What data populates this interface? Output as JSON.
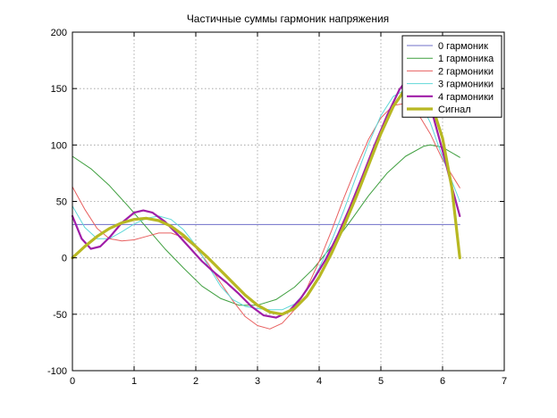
{
  "chart_data": {
    "type": "line",
    "title": "Частичные суммы гармоник напряжения",
    "xlabel": "",
    "ylabel": "",
    "xlim": [
      0,
      7
    ],
    "ylim": [
      -100,
      200
    ],
    "xticks": [
      "0",
      "1",
      "2",
      "3",
      "4",
      "5",
      "6",
      "7"
    ],
    "yticks": [
      "-100",
      "-50",
      "0",
      "50",
      "100",
      "150",
      "200"
    ],
    "grid": true,
    "legend_position": "top-right",
    "series": [
      {
        "name": "0 гармоник",
        "color": "#6f6fc8",
        "width": "thin",
        "x": [
          0,
          6.28
        ],
        "y": [
          29.5,
          29.5
        ]
      },
      {
        "name": "1 гармоника",
        "color": "#3f9f3f",
        "width": "thin",
        "x": [
          0,
          0.3,
          0.6,
          0.9,
          1.2,
          1.5,
          1.8,
          2.1,
          2.4,
          2.7,
          3.0,
          3.3,
          3.6,
          3.9,
          4.2,
          4.5,
          4.8,
          5.1,
          5.4,
          5.7,
          5.8,
          6.0,
          6.28
        ],
        "y": [
          90,
          79,
          64,
          46,
          27,
          8,
          -9,
          -25,
          -36,
          -42,
          -42,
          -37,
          -26,
          -10,
          10,
          32,
          55,
          75,
          90,
          99,
          100,
          98,
          89
        ]
      },
      {
        "name": "2 гармоники",
        "color": "#e86060",
        "width": "thin",
        "x": [
          0,
          0.2,
          0.4,
          0.6,
          0.8,
          1.0,
          1.2,
          1.4,
          1.6,
          1.8,
          2.0,
          2.2,
          2.4,
          2.6,
          2.8,
          3.0,
          3.2,
          3.4,
          3.6,
          3.8,
          4.0,
          4.2,
          4.4,
          4.6,
          4.8,
          5.0,
          5.2,
          5.4,
          5.6,
          5.8,
          6.0,
          6.28
        ],
        "y": [
          63,
          43,
          26,
          17,
          15,
          16,
          19,
          22,
          22,
          18,
          9,
          -5,
          -22,
          -38,
          -52,
          -60,
          -63,
          -58,
          -46,
          -27,
          -3,
          24,
          53,
          80,
          105,
          124,
          135,
          137,
          128,
          110,
          87,
          62
        ]
      },
      {
        "name": "3 гармоники",
        "color": "#5fd8d8",
        "width": "thin",
        "x": [
          0,
          0.2,
          0.4,
          0.6,
          0.8,
          1.0,
          1.2,
          1.4,
          1.6,
          1.8,
          2.0,
          2.2,
          2.4,
          2.6,
          2.8,
          3.0,
          3.2,
          3.4,
          3.6,
          3.8,
          4.0,
          4.2,
          4.4,
          4.6,
          4.8,
          5.0,
          5.2,
          5.4,
          5.6,
          5.8,
          6.0,
          6.28
        ],
        "y": [
          46,
          27,
          17,
          17,
          23,
          30,
          35,
          37,
          34,
          25,
          11,
          -7,
          -25,
          -37,
          -43,
          -45,
          -46,
          -46,
          -41,
          -29,
          -9,
          15,
          42,
          72,
          101,
          126,
          143,
          149,
          142,
          120,
          89,
          50
        ]
      },
      {
        "name": "4 гармоники",
        "color": "#a01ea8",
        "width": "medium",
        "x": [
          0,
          0.15,
          0.3,
          0.45,
          0.6,
          0.8,
          1.0,
          1.15,
          1.3,
          1.5,
          1.7,
          1.9,
          2.1,
          2.3,
          2.5,
          2.7,
          2.9,
          3.1,
          3.3,
          3.5,
          3.7,
          3.9,
          4.1,
          4.3,
          4.5,
          4.7,
          4.9,
          5.1,
          5.3,
          5.45,
          5.6,
          5.8,
          6.0,
          6.15,
          6.28
        ],
        "y": [
          37,
          17,
          8,
          10,
          18,
          31,
          40,
          42,
          40,
          32,
          21,
          9,
          -3,
          -13,
          -22,
          -32,
          -43,
          -51,
          -53,
          -48,
          -36,
          -20,
          -2,
          20,
          45,
          72,
          100,
          126,
          149,
          160,
          158,
          135,
          95,
          63,
          37
        ]
      },
      {
        "name": "Сигнал",
        "color": "#b8b822",
        "width": "thick",
        "x": [
          0,
          0.2,
          0.4,
          0.6,
          0.8,
          1.0,
          1.2,
          1.4,
          1.6,
          1.8,
          2.0,
          2.2,
          2.4,
          2.6,
          2.8,
          3.0,
          3.2,
          3.4,
          3.6,
          3.8,
          4.0,
          4.2,
          4.4,
          4.6,
          4.8,
          5.0,
          5.2,
          5.4,
          5.6,
          5.8,
          6.0,
          6.15,
          6.28
        ],
        "y": [
          0,
          10,
          19,
          26,
          31,
          34,
          35,
          33,
          28,
          20,
          10,
          0,
          -11,
          -22,
          -33,
          -42,
          -48,
          -50,
          -45,
          -34,
          -17,
          4,
          28,
          54,
          82,
          110,
          134,
          150,
          153,
          140,
          106,
          62,
          0
        ]
      }
    ]
  }
}
